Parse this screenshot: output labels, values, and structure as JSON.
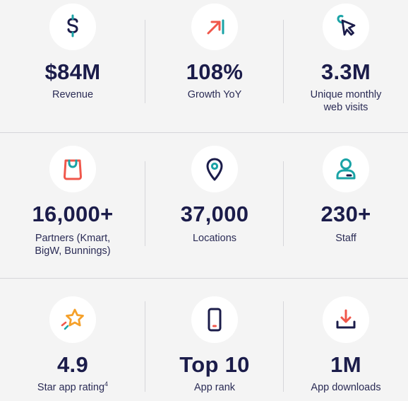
{
  "stats": [
    {
      "value": "$84M",
      "label": "Revenue",
      "icon": "dollar-icon"
    },
    {
      "value": "108%",
      "label": "Growth YoY",
      "icon": "growth-arrow-icon"
    },
    {
      "value": "3.3M",
      "label": "Unique monthly\nweb visits",
      "icon": "cursor-click-icon"
    },
    {
      "value": "16,000+",
      "label": "Partners (Kmart,\nBigW, Bunnings)",
      "icon": "shopping-bag-icon"
    },
    {
      "value": "37,000",
      "label": "Locations",
      "icon": "location-pin-icon"
    },
    {
      "value": "230+",
      "label": "Staff",
      "icon": "person-icon"
    },
    {
      "value": "4.9",
      "label": "Star app rating",
      "label_sup": "4",
      "icon": "star-icon"
    },
    {
      "value": "Top 10",
      "label": "App rank",
      "icon": "smartphone-icon"
    },
    {
      "value": "1M",
      "label": "App downloads",
      "icon": "download-icon"
    }
  ],
  "colors": {
    "navy": "#1b1c4a",
    "teal": "#1aa3a6",
    "coral": "#f0574b",
    "orange": "#f5a12b",
    "background": "#f4f4f4",
    "circle": "#ffffff",
    "divider": "#d6d6da"
  }
}
